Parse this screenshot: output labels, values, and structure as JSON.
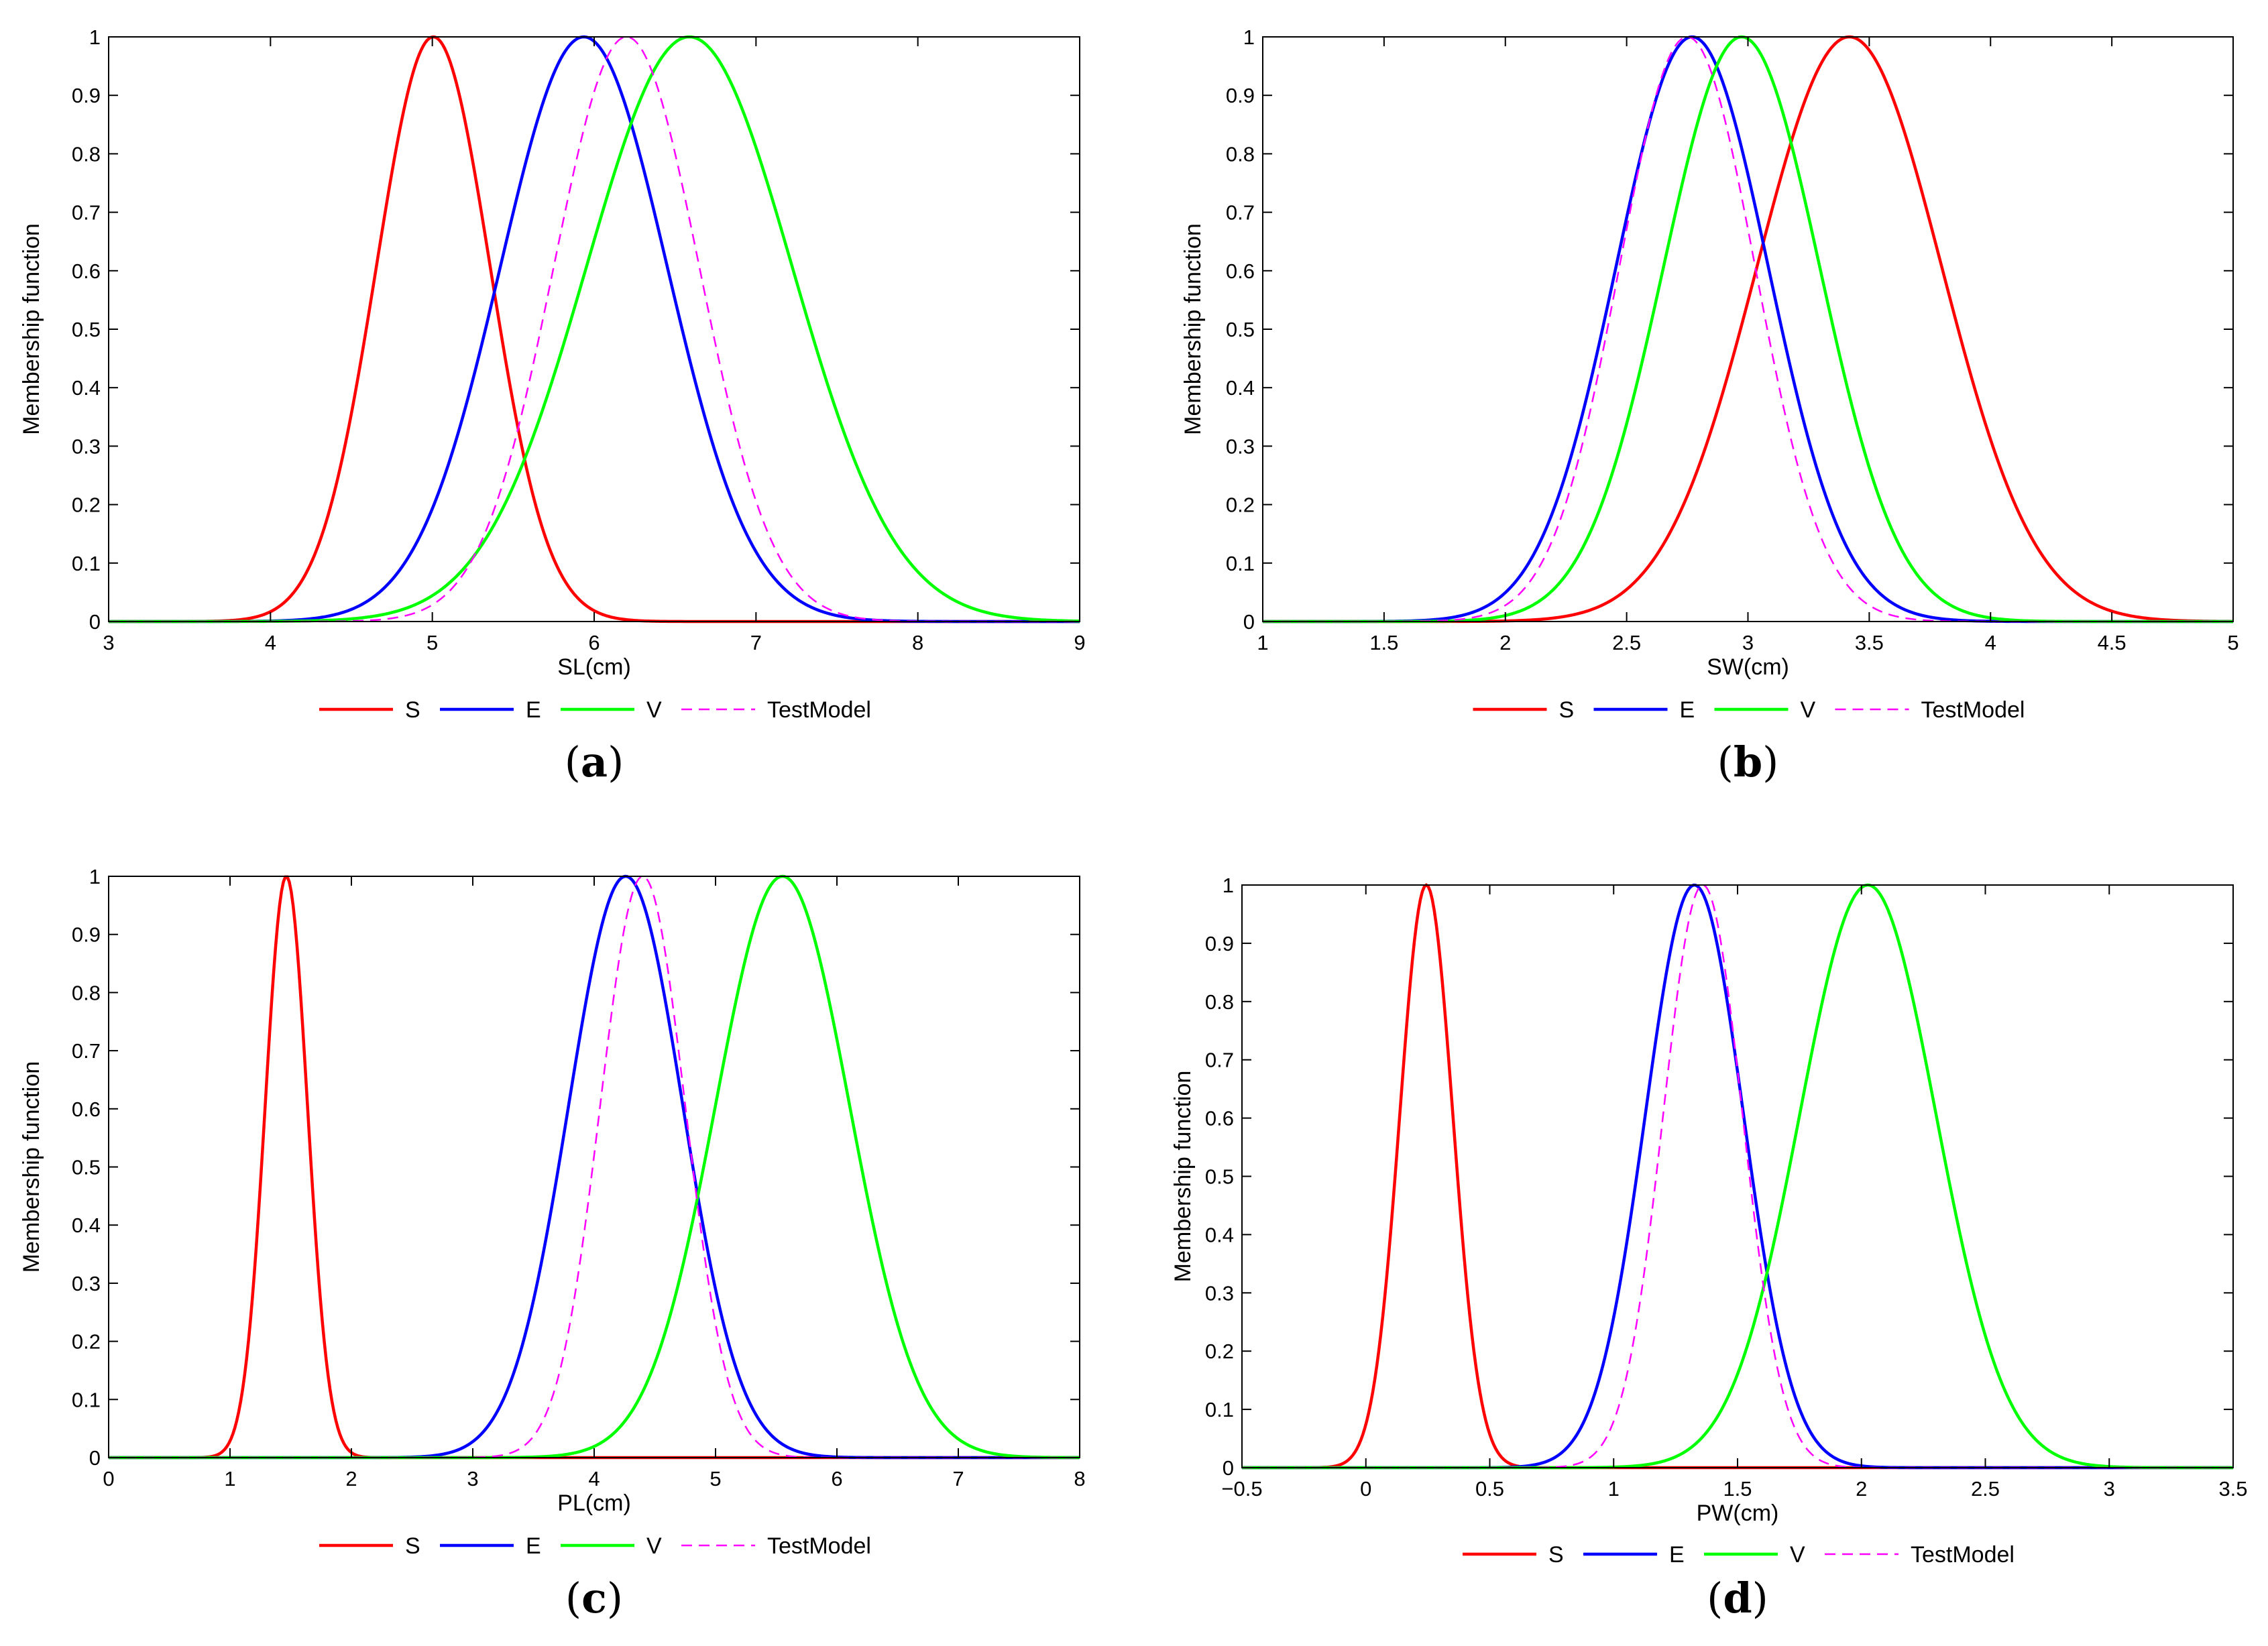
{
  "chart_data": [
    {
      "type": "line",
      "panel_label": "a",
      "title": "",
      "xlabel": "SL(cm)",
      "ylabel": "Membership function",
      "xlim": [
        3,
        9
      ],
      "ylim": [
        0,
        1
      ],
      "xticks": [
        3,
        4,
        5,
        6,
        7,
        8,
        9
      ],
      "yticks": [
        0,
        0.1,
        0.2,
        0.3,
        0.4,
        0.5,
        0.6,
        0.7,
        0.8,
        0.9,
        1
      ],
      "series": [
        {
          "name": "S",
          "color": "#ff0000",
          "style": "solid",
          "mean": 5.006,
          "sigma": 0.352
        },
        {
          "name": "E",
          "color": "#0000ff",
          "style": "solid",
          "mean": 5.936,
          "sigma": 0.516
        },
        {
          "name": "V",
          "color": "#00ff00",
          "style": "solid",
          "mean": 6.588,
          "sigma": 0.636
        },
        {
          "name": "TestModel",
          "color": "#ff00ff",
          "style": "dashed",
          "mean": 6.2,
          "sigma": 0.45
        }
      ]
    },
    {
      "type": "line",
      "panel_label": "b",
      "title": "",
      "xlabel": "SW(cm)",
      "ylabel": "Membership function",
      "xlim": [
        1,
        5
      ],
      "ylim": [
        0,
        1
      ],
      "xticks": [
        1,
        1.5,
        2,
        2.5,
        3,
        3.5,
        4,
        4.5,
        5
      ],
      "yticks": [
        0,
        0.1,
        0.2,
        0.3,
        0.4,
        0.5,
        0.6,
        0.7,
        0.8,
        0.9,
        1
      ],
      "series": [
        {
          "name": "S",
          "color": "#ff0000",
          "style": "solid",
          "mean": 3.418,
          "sigma": 0.381
        },
        {
          "name": "E",
          "color": "#0000ff",
          "style": "solid",
          "mean": 2.77,
          "sigma": 0.314
        },
        {
          "name": "V",
          "color": "#00ff00",
          "style": "solid",
          "mean": 2.974,
          "sigma": 0.322
        },
        {
          "name": "TestModel",
          "color": "#ff00ff",
          "style": "dashed",
          "mean": 2.75,
          "sigma": 0.28
        }
      ]
    },
    {
      "type": "line",
      "panel_label": "c",
      "title": "",
      "xlabel": "PL(cm)",
      "ylabel": "Membership function",
      "xlim": [
        0,
        8
      ],
      "ylim": [
        0,
        1
      ],
      "xticks": [
        0,
        1,
        2,
        3,
        4,
        5,
        6,
        7,
        8
      ],
      "yticks": [
        0,
        0.1,
        0.2,
        0.3,
        0.4,
        0.5,
        0.6,
        0.7,
        0.8,
        0.9,
        1
      ],
      "series": [
        {
          "name": "S",
          "color": "#ff0000",
          "style": "solid",
          "mean": 1.464,
          "sigma": 0.174
        },
        {
          "name": "E",
          "color": "#0000ff",
          "style": "solid",
          "mean": 4.26,
          "sigma": 0.47
        },
        {
          "name": "V",
          "color": "#00ff00",
          "style": "solid",
          "mean": 5.552,
          "sigma": 0.552
        },
        {
          "name": "TestModel",
          "color": "#ff00ff",
          "style": "dashed",
          "mean": 4.4,
          "sigma": 0.35
        }
      ]
    },
    {
      "type": "line",
      "panel_label": "d",
      "title": "",
      "xlabel": "PW(cm)",
      "ylabel": "Membership function",
      "xlim": [
        -0.5,
        3.5
      ],
      "ylim": [
        0,
        1
      ],
      "xticks": [
        -0.5,
        0,
        0.5,
        1,
        1.5,
        2,
        2.5,
        3,
        3.5
      ],
      "xtick_labels": [
        "−0.5",
        "0",
        "0.5",
        "1",
        "1.5",
        "2",
        "2.5",
        "3",
        "3.5"
      ],
      "yticks": [
        0,
        0.1,
        0.2,
        0.3,
        0.4,
        0.5,
        0.6,
        0.7,
        0.8,
        0.9,
        1
      ],
      "series": [
        {
          "name": "S",
          "color": "#ff0000",
          "style": "solid",
          "mean": 0.244,
          "sigma": 0.107
        },
        {
          "name": "E",
          "color": "#0000ff",
          "style": "solid",
          "mean": 1.326,
          "sigma": 0.198
        },
        {
          "name": "V",
          "color": "#00ff00",
          "style": "solid",
          "mean": 2.026,
          "sigma": 0.275
        },
        {
          "name": "TestModel",
          "color": "#ff00ff",
          "style": "dashed",
          "mean": 1.36,
          "sigma": 0.16
        }
      ]
    }
  ]
}
